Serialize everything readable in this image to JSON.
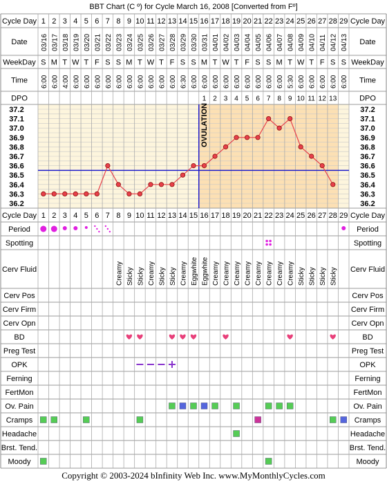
{
  "title": "BBT Chart (C º) for Cycle March 16, 2008  [Converted from Fº]",
  "footer": "Copyright © 2003-2024 bInfinity Web Inc.    www.MyMonthlyCycles.com",
  "row_labels": {
    "cycle_day": "Cycle Day",
    "date": "Date",
    "weekday": "WeekDay",
    "time": "Time",
    "dpo": "DPO",
    "period": "Period",
    "spotting": "Spotting",
    "cerv_fluid": "Cerv Fluid",
    "cerv_pos": "Cerv Pos",
    "cerv_firm": "Cerv Firm",
    "cerv_opn": "Cerv Opn",
    "bd": "BD",
    "preg_test": "Preg Test",
    "opk": "OPK",
    "ferning": "Ferning",
    "fertmon": "FertMon",
    "ov_pain": "Ov. Pain",
    "cramps": "Cramps",
    "headache": "Headache",
    "brst_tend": "Brst. Tend.",
    "moody": "Moody"
  },
  "ovulation_label": "OVULATION",
  "colors": {
    "grid_bg": "#fdf5dd",
    "post_ov_bg": "#fce0b4",
    "line": "#e8404a",
    "coverline": "#1a1acc",
    "heart": "#e8407a",
    "period": "#e020e0",
    "symptom_green": "#55cc55",
    "symptom_blue": "#5566dd",
    "symptom_magenta": "#cc3399",
    "opk": "#8833cc"
  },
  "chart_data": {
    "type": "line",
    "x": [
      1,
      2,
      3,
      4,
      5,
      6,
      7,
      8,
      9,
      10,
      11,
      12,
      13,
      14,
      15,
      16,
      17,
      18,
      19,
      20,
      21,
      22,
      23,
      24,
      25,
      26,
      27,
      28
    ],
    "dates": [
      "03/16",
      "03/17",
      "03/18",
      "03/19",
      "03/20",
      "03/21",
      "03/22",
      "03/23",
      "03/24",
      "03/25",
      "03/26",
      "03/27",
      "03/28",
      "03/29",
      "03/30",
      "03/31",
      "04/01",
      "04/02",
      "04/03",
      "04/04",
      "04/05",
      "04/06",
      "04/07",
      "04/08",
      "04/09",
      "04/10",
      "04/11",
      "04/12",
      "04/13"
    ],
    "weekdays": [
      "S",
      "M",
      "T",
      "W",
      "T",
      "F",
      "S",
      "S",
      "M",
      "T",
      "W",
      "T",
      "F",
      "S",
      "S",
      "M",
      "T",
      "W",
      "T",
      "F",
      "S",
      "S",
      "M",
      "T",
      "W",
      "T",
      "F",
      "S",
      "S"
    ],
    "times": [
      "6:00",
      "6:00",
      "4:00",
      "6:00",
      "6:00",
      "6:00",
      "6:00",
      "6:00",
      "6:00",
      "6:00",
      "6:00",
      "6:00",
      "6:00",
      "6:30",
      "6:00",
      "6:00",
      "6:00",
      "6:00",
      "6:00",
      "6:00",
      "6:00",
      "6:00",
      "6:00",
      "5:30",
      "6:00",
      "6:00",
      "6:00",
      "6:00",
      "6:00"
    ],
    "dpo": [
      "",
      "",
      "",
      "",
      "",
      "",
      "",
      "",
      "",
      "",
      "",
      "",
      "",
      "",
      "",
      "1",
      "2",
      "3",
      "4",
      "5",
      "6",
      "7",
      "8",
      "9",
      "10",
      "11",
      "12",
      "13",
      ""
    ],
    "temps": [
      36.3,
      36.3,
      36.3,
      36.3,
      36.3,
      36.3,
      36.6,
      36.4,
      36.3,
      36.3,
      36.4,
      36.4,
      36.4,
      36.5,
      36.6,
      36.6,
      36.7,
      36.8,
      36.9,
      36.9,
      36.9,
      37.1,
      37.0,
      37.1,
      36.8,
      36.7,
      36.6,
      36.4
    ],
    "y_ticks": [
      "37.2",
      "37.1",
      "37.0",
      "36.9",
      "36.8",
      "36.7",
      "36.6",
      "36.5",
      "36.4",
      "36.3",
      "36.2"
    ],
    "ylim": [
      36.2,
      37.2
    ],
    "coverline": 36.55,
    "ovulation_day": 15,
    "grid": true
  },
  "period": [
    "heavy",
    "heavy",
    "medium",
    "medium",
    "light",
    "spot",
    "spot",
    "",
    "",
    "",
    "",
    "",
    "",
    "",
    "",
    "",
    "",
    "",
    "",
    "",
    "",
    "",
    "",
    "",
    "",
    "",
    "",
    "",
    "medium"
  ],
  "spotting_days": [
    22
  ],
  "cerv_fluid": [
    "",
    "",
    "",
    "",
    "",
    "",
    "",
    "Creamy",
    "Sticky",
    "Sticky",
    "Creamy",
    "Sticky",
    "Sticky",
    "Creamy",
    "Eggwhite",
    "Eggwhite",
    "Creamy",
    "Creamy",
    "Creamy",
    "Creamy",
    "Creamy",
    "Creamy",
    "Creamy",
    "Creamy",
    "Sticky",
    "Sticky",
    "Sticky",
    "Sticky",
    ""
  ],
  "bd_days": [
    9,
    10,
    13,
    14,
    15,
    18,
    24,
    28
  ],
  "opk": [
    {
      "day": 10,
      "result": "-"
    },
    {
      "day": 11,
      "result": "-"
    },
    {
      "day": 12,
      "result": "-"
    },
    {
      "day": 13,
      "result": "+"
    }
  ],
  "ov_pain": [
    {
      "day": 13,
      "color": "green"
    },
    {
      "day": 14,
      "color": "blue"
    },
    {
      "day": 15,
      "color": "green"
    },
    {
      "day": 16,
      "color": "blue"
    },
    {
      "day": 17,
      "color": "green"
    },
    {
      "day": 19,
      "color": "green"
    },
    {
      "day": 22,
      "color": "green"
    },
    {
      "day": 23,
      "color": "green"
    },
    {
      "day": 24,
      "color": "green"
    }
  ],
  "cramps": [
    {
      "day": 1,
      "color": "green"
    },
    {
      "day": 2,
      "color": "green"
    },
    {
      "day": 5,
      "color": "green"
    },
    {
      "day": 10,
      "color": "green"
    },
    {
      "day": 21,
      "color": "magenta"
    },
    {
      "day": 28,
      "color": "green"
    },
    {
      "day": 29,
      "color": "blue"
    }
  ],
  "headache": [
    {
      "day": 19,
      "color": "green"
    }
  ],
  "moody": [
    {
      "day": 1,
      "color": "green"
    },
    {
      "day": 22,
      "color": "green"
    }
  ]
}
